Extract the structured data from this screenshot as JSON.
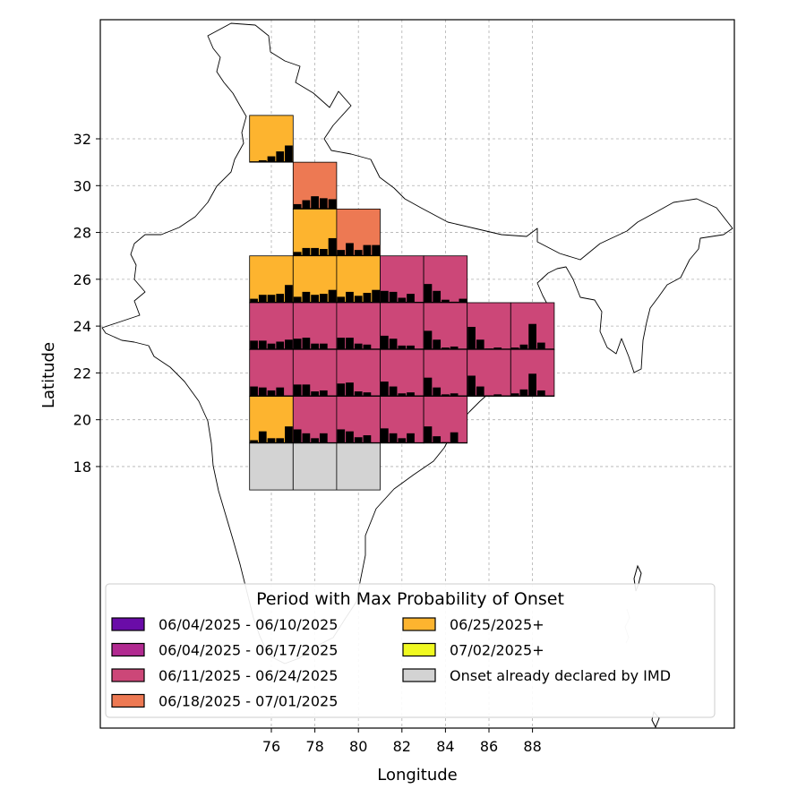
{
  "axes": {
    "xlabel": "Longitude",
    "ylabel": "Latitude",
    "xticks": [
      "76",
      "78",
      "80",
      "82",
      "84",
      "86",
      "88"
    ],
    "yticks": [
      "18",
      "20",
      "22",
      "24",
      "26",
      "28",
      "30",
      "32"
    ],
    "xlim": [
      67.5,
      97.5
    ],
    "ylim": [
      6.0,
      37.5
    ],
    "grid": true
  },
  "legend": {
    "title": "Period with Max Probability of Onset",
    "placement": "lower center",
    "entries": [
      {
        "label": "06/04/2025 - 06/10/2025",
        "color": "#6a0ca8"
      },
      {
        "label": "06/04/2025 - 06/17/2025",
        "color": "#b12a90"
      },
      {
        "label": "06/11/2025 - 06/24/2025",
        "color": "#cc4778"
      },
      {
        "label": "06/18/2025 - 07/01/2025",
        "color": "#ed7953"
      },
      {
        "label": "06/25/2025+",
        "color": "#fdb42f"
      },
      {
        "label": "07/02/2025+",
        "color": "#f0f921"
      },
      {
        "label": "Onset already declared by IMD",
        "color": "#d3d3d3"
      }
    ]
  },
  "chart_data": {
    "type": "heatmap",
    "title": "",
    "xlabel": "Longitude",
    "ylabel": "Latitude",
    "cell_size_deg": 2,
    "cells": [
      {
        "lon": 75,
        "lat": 31,
        "period": 4,
        "hist": [
          0,
          0.1,
          0.3,
          0.55,
          0.85
        ]
      },
      {
        "lon": 77,
        "lat": 29,
        "period": 3,
        "hist": [
          0.25,
          0.45,
          0.65,
          0.55,
          0.5
        ]
      },
      {
        "lon": 77,
        "lat": 27,
        "period": 4,
        "hist": [
          0.2,
          0.4,
          0.4,
          0.35,
          0.9
        ]
      },
      {
        "lon": 79,
        "lat": 27,
        "period": 3,
        "hist": [
          0.3,
          0.65,
          0.3,
          0.55,
          0.55
        ]
      },
      {
        "lon": 75,
        "lat": 25,
        "period": 4,
        "hist": [
          0.2,
          0.4,
          0.4,
          0.45,
          0.9
        ]
      },
      {
        "lon": 77,
        "lat": 25,
        "period": 4,
        "hist": [
          0.3,
          0.55,
          0.4,
          0.45,
          0.65
        ]
      },
      {
        "lon": 79,
        "lat": 25,
        "period": 4,
        "hist": [
          0.3,
          0.55,
          0.35,
          0.5,
          0.65
        ]
      },
      {
        "lon": 81,
        "lat": 25,
        "period": 2,
        "hist": [
          0.6,
          0.55,
          0.25,
          0.45,
          0
        ]
      },
      {
        "lon": 83,
        "lat": 25,
        "period": 2,
        "hist": [
          0.95,
          0.6,
          0.15,
          0.05,
          0.2
        ]
      },
      {
        "lon": 75,
        "lat": 23,
        "period": 2,
        "hist": [
          0.45,
          0.45,
          0.3,
          0.4,
          0.5
        ]
      },
      {
        "lon": 77,
        "lat": 23,
        "period": 2,
        "hist": [
          0.55,
          0.6,
          0.3,
          0.3,
          0
        ]
      },
      {
        "lon": 79,
        "lat": 23,
        "period": 2,
        "hist": [
          0.6,
          0.6,
          0.3,
          0.25,
          0
        ]
      },
      {
        "lon": 81,
        "lat": 23,
        "period": 2,
        "hist": [
          0.7,
          0.55,
          0.2,
          0.2,
          0
        ]
      },
      {
        "lon": 83,
        "lat": 23,
        "period": 2,
        "hist": [
          0.95,
          0.5,
          0.1,
          0.15,
          0
        ]
      },
      {
        "lon": 85,
        "lat": 23,
        "period": 2,
        "hist": [
          1.15,
          0.5,
          0.05,
          0.1,
          0
        ]
      },
      {
        "lon": 87,
        "lat": 23,
        "period": 2,
        "hist": [
          0.1,
          0.25,
          1.3,
          0.35,
          0
        ]
      },
      {
        "lon": 75,
        "lat": 21,
        "period": 2,
        "hist": [
          0.5,
          0.45,
          0.3,
          0.45,
          0
        ]
      },
      {
        "lon": 77,
        "lat": 21,
        "period": 2,
        "hist": [
          0.6,
          0.6,
          0.25,
          0.3,
          0
        ]
      },
      {
        "lon": 79,
        "lat": 21,
        "period": 2,
        "hist": [
          0.65,
          0.7,
          0.25,
          0.2,
          0
        ]
      },
      {
        "lon": 81,
        "lat": 21,
        "period": 2,
        "hist": [
          0.75,
          0.5,
          0.15,
          0.2,
          0
        ]
      },
      {
        "lon": 83,
        "lat": 21,
        "period": 2,
        "hist": [
          0.95,
          0.45,
          0.1,
          0.15,
          0
        ]
      },
      {
        "lon": 85,
        "lat": 21,
        "period": 2,
        "hist": [
          1.05,
          0.5,
          0.05,
          0.1,
          0
        ]
      },
      {
        "lon": 87,
        "lat": 21,
        "period": 2,
        "hist": [
          0.15,
          0.35,
          1.15,
          0.3,
          0
        ]
      },
      {
        "lon": 75,
        "lat": 19,
        "period": 4,
        "hist": [
          0.15,
          0.6,
          0.25,
          0.25,
          0.85
        ]
      },
      {
        "lon": 77,
        "lat": 19,
        "period": 2,
        "hist": [
          0.7,
          0.5,
          0.25,
          0.5,
          0
        ]
      },
      {
        "lon": 79,
        "lat": 19,
        "period": 2,
        "hist": [
          0.7,
          0.6,
          0.3,
          0.4,
          0
        ]
      },
      {
        "lon": 81,
        "lat": 19,
        "period": 2,
        "hist": [
          0.75,
          0.5,
          0.25,
          0.5,
          0
        ]
      },
      {
        "lon": 83,
        "lat": 19,
        "period": 2,
        "hist": [
          0.85,
          0.35,
          0.05,
          0.55,
          0
        ]
      },
      {
        "lon": 75,
        "lat": 17,
        "period": 6,
        "hist": []
      },
      {
        "lon": 77,
        "lat": 17,
        "period": 6,
        "hist": []
      },
      {
        "lon": 79,
        "lat": 17,
        "period": 6,
        "hist": []
      }
    ]
  }
}
